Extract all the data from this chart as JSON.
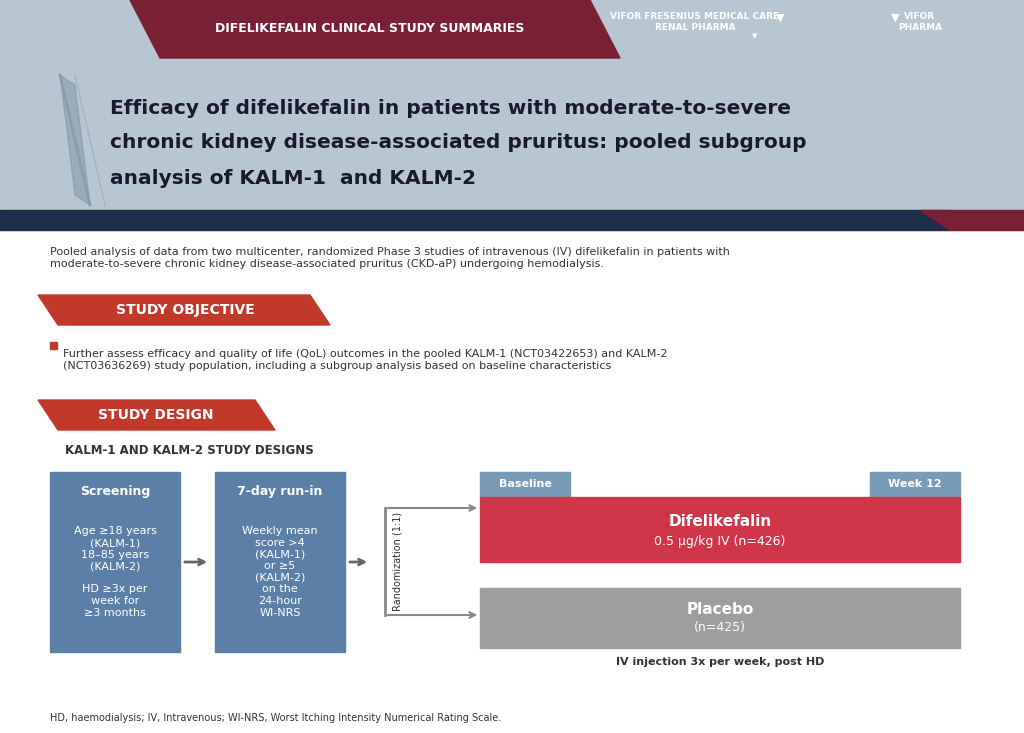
{
  "bg_color": "#f0f0f0",
  "header_bg": "#7a2035",
  "header_text": "DIFELIKEFALIN CLINICAL STUDY SUMMARIES",
  "header_text_color": "#ffffff",
  "title_bg": "#b0bec5",
  "title_text_line1": "Efficacy of difelikefalin in patients with moderate-to-severe",
  "title_text_line2": "chronic kidney disease-associated pruritus: pooled subgroup",
  "title_text_line3": "analysis of KALM-1  and KALM-2",
  "title_text_color": "#1a1a2e",
  "dark_bar_color": "#1e2d4a",
  "intro_text": "Pooled analysis of data from two multicenter, randomized Phase 3 studies of intravenous (IV) difelikefalin in patients with\nmoderate-to-severe chronic kidney disease-associated pruritus (CKD-aP) undergoing hemodialysis.",
  "objective_label": "STUDY OBJECTIVE",
  "objective_bg": "#c0392b",
  "objective_text_color": "#ffffff",
  "objective_bullet": "Further assess efficacy and quality of life (QoL) outcomes in the pooled KALM-1 (NCT03422653) and KALM-2\n(NCT03636269) study population, including a subgroup analysis based on baseline characteristics",
  "design_label": "STUDY DESIGN",
  "design_bg": "#c0392b",
  "design_subtitle": "KALM-1 AND KALM-2 STUDY DESIGNS",
  "screen_box_color": "#5b7fa6",
  "screen_title": "Screening",
  "screen_body": "Age ≥18 years\n(KALM-1)\n18–85 years\n(KALM-2)\n\nHD ≥3x per\nweek for\n≥3 months",
  "runin_box_color": "#5b7fa6",
  "runin_title": "7-day run-in",
  "runin_body": "Weekly mean\nscore >4\n(KALM-1)\nor ≥5\n(KALM-2)\non the\n24-hour\nWI-NRS",
  "difelikefalin_color": "#d0364a",
  "difelikefalin_title": "Difelikefalin",
  "difelikefalin_body": "0.5 μg/kg IV (n=426)",
  "placebo_color": "#9e9e9e",
  "placebo_title": "Placebo",
  "placebo_body": "(n=425)",
  "baseline_box_color": "#7a9bb5",
  "week12_box_color": "#7a9bb5",
  "randomization_label": "Randomization (1:1)",
  "iv_injection_text": "IV injection 3x per week, post HD",
  "footnote_text": "HD, haemodialysis; IV, Intravenous; WI-NRS, Worst Itching Intensity Numerical Rating Scale.",
  "white": "#ffffff",
  "dark_text": "#333333",
  "light_bg": "#ffffff"
}
